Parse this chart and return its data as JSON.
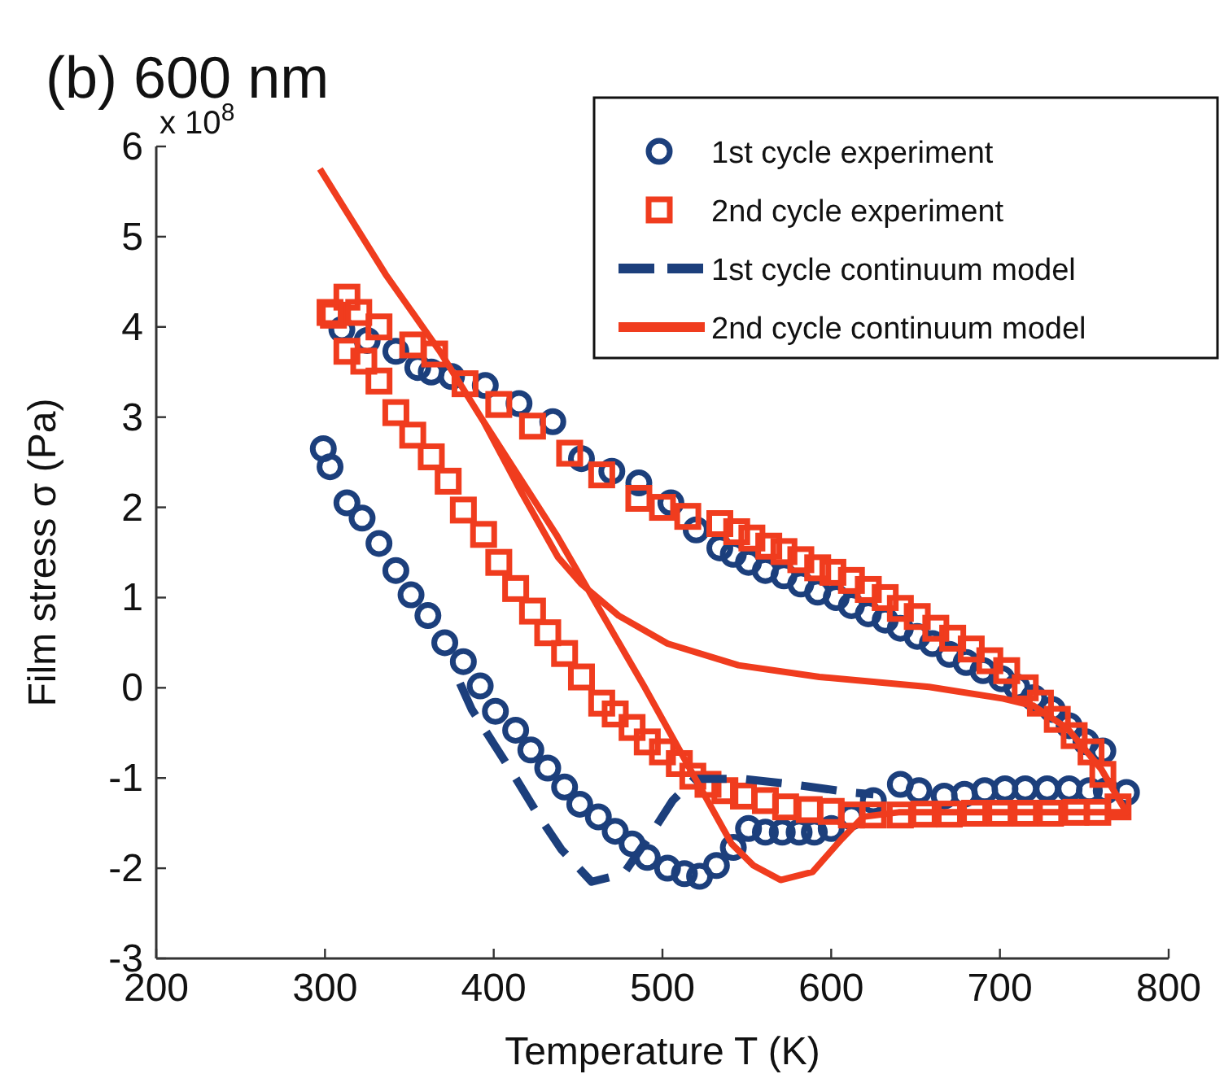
{
  "chart_data": {
    "type": "scatter",
    "title": "(b) 600 nm",
    "xlabel": "Temperature T (K)",
    "ylabel": "Film stress σ (Pa)",
    "annotations": [
      "x 10$^{8}$"
    ],
    "xlim": [
      200,
      800
    ],
    "xticks": [
      200,
      300,
      400,
      500,
      600,
      700,
      800
    ],
    "ylim": [
      -3,
      6
    ],
    "yticks": [
      -3,
      -2,
      -1,
      0,
      1,
      2,
      3,
      4,
      5,
      6
    ],
    "grid": false,
    "legend": "top right",
    "series": [
      {
        "name": "1st cycle experiment",
        "marker": "circle",
        "color": "#1c3f7c",
        "x": [
          299,
          303,
          313,
          322,
          332,
          342,
          351,
          361,
          371,
          382,
          392,
          401,
          413,
          422,
          432,
          442,
          451,
          462,
          472,
          482,
          491,
          503,
          513,
          522,
          532,
          542,
          551,
          561,
          571,
          581,
          590,
          600,
          612,
          625,
          641,
          652,
          667,
          679,
          691,
          703,
          715,
          728,
          741,
          753,
          763,
          775,
          761,
          751,
          741,
          731,
          720,
          710,
          701,
          690,
          680,
          670,
          660,
          651,
          641,
          632,
          622,
          612,
          603,
          592,
          582,
          572,
          561,
          551,
          542,
          534,
          520,
          505,
          486,
          470,
          452,
          435,
          415,
          395,
          375,
          363,
          355,
          342,
          325,
          310
        ],
        "values": [
          2.65,
          2.45,
          2.05,
          1.88,
          1.6,
          1.3,
          1.03,
          0.8,
          0.5,
          0.29,
          0.02,
          -0.26,
          -0.47,
          -0.69,
          -0.89,
          -1.1,
          -1.29,
          -1.43,
          -1.59,
          -1.73,
          -1.88,
          -2.0,
          -2.06,
          -2.09,
          -1.97,
          -1.77,
          -1.56,
          -1.6,
          -1.6,
          -1.6,
          -1.6,
          -1.56,
          -1.43,
          -1.25,
          -1.07,
          -1.14,
          -1.2,
          -1.18,
          -1.14,
          -1.12,
          -1.12,
          -1.12,
          -1.12,
          -1.14,
          -1.14,
          -1.16,
          -0.7,
          -0.6,
          -0.42,
          -0.24,
          -0.11,
          0.01,
          0.1,
          0.19,
          0.28,
          0.37,
          0.49,
          0.57,
          0.66,
          0.75,
          0.82,
          0.91,
          1.0,
          1.06,
          1.15,
          1.24,
          1.3,
          1.39,
          1.48,
          1.55,
          1.75,
          2.05,
          2.27,
          2.4,
          2.54,
          2.95,
          3.15,
          3.35,
          3.45,
          3.5,
          3.55,
          3.73,
          3.85,
          3.97
        ]
      },
      {
        "name": "2nd cycle experiment",
        "marker": "square",
        "color": "#f03c1e",
        "x": [
          313,
          305,
          313,
          323,
          332,
          342,
          352,
          363,
          373,
          382,
          394,
          403,
          413,
          423,
          432,
          442,
          452,
          464,
          472,
          482,
          491,
          500,
          510,
          518,
          527,
          537,
          548,
          561,
          573,
          587,
          600,
          612,
          625,
          641,
          655,
          670,
          685,
          700,
          715,
          730,
          745,
          758,
          770,
          761,
          754,
          744,
          734,
          724,
          715,
          704,
          694,
          683,
          672,
          662,
          651,
          641,
          632,
          622,
          612,
          601,
          592,
          582,
          572,
          563,
          553,
          544,
          534,
          515,
          500,
          486,
          464,
          445,
          423,
          403,
          383,
          365,
          352,
          332,
          320,
          303
        ],
        "values": [
          4.33,
          4.13,
          3.73,
          3.62,
          3.4,
          3.05,
          2.8,
          2.56,
          2.29,
          1.97,
          1.7,
          1.39,
          1.1,
          0.85,
          0.61,
          0.38,
          0.12,
          -0.17,
          -0.29,
          -0.44,
          -0.6,
          -0.71,
          -0.84,
          -0.98,
          -1.07,
          -1.14,
          -1.2,
          -1.25,
          -1.32,
          -1.35,
          -1.37,
          -1.41,
          -1.41,
          -1.41,
          -1.4,
          -1.4,
          -1.39,
          -1.39,
          -1.39,
          -1.39,
          -1.38,
          -1.38,
          -1.32,
          -0.96,
          -0.71,
          -0.53,
          -0.35,
          -0.17,
          0.0,
          0.19,
          0.3,
          0.43,
          0.55,
          0.66,
          0.79,
          0.88,
          1.0,
          1.09,
          1.19,
          1.28,
          1.33,
          1.42,
          1.51,
          1.57,
          1.66,
          1.73,
          1.82,
          1.9,
          2.0,
          2.1,
          2.36,
          2.6,
          2.9,
          3.14,
          3.37,
          3.7,
          3.8,
          4.0,
          4.16,
          4.16
        ]
      },
      {
        "name": "1st cycle continuum model",
        "type": "line",
        "line_style": "dashed",
        "color": "#1c3f7c",
        "x": [
          380,
          387,
          400,
          413,
          426,
          440,
          458,
          477,
          494,
          506,
          519,
          548,
          577,
          612,
          625
        ],
        "values": [
          0.05,
          -0.24,
          -0.62,
          -1.0,
          -1.4,
          -1.79,
          -2.15,
          -2.06,
          -1.6,
          -1.25,
          -1.01,
          -1.01,
          -1.07,
          -1.16,
          -1.18
        ]
      },
      {
        "name": "2nd cycle continuum model",
        "type": "line",
        "line_style": "solid",
        "color": "#f03c1e",
        "x": [
          297,
          336,
          368,
          394,
          437,
          489,
          541,
          554,
          570,
          589,
          606,
          619,
          640,
          700,
          775,
          760,
          740,
          720,
          702,
          658,
          593,
          545,
          503,
          474,
          452,
          438,
          416,
          394
        ],
        "values": [
          5.75,
          4.58,
          3.73,
          2.95,
          1.7,
          0.02,
          -1.73,
          -1.97,
          -2.13,
          -2.04,
          -1.68,
          -1.43,
          -1.38,
          -1.38,
          -1.38,
          -0.9,
          -0.45,
          -0.2,
          -0.12,
          0.01,
          0.12,
          0.25,
          0.49,
          0.8,
          1.15,
          1.45,
          2.18,
          2.95
        ]
      }
    ]
  }
}
